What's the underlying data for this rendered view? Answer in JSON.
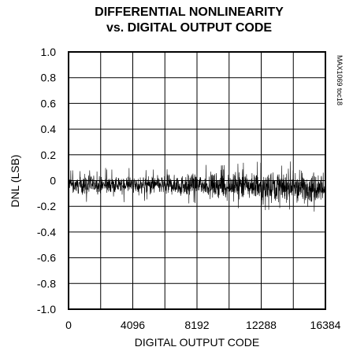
{
  "chart_data": {
    "type": "line",
    "title": "DIFFERENTIAL NONLINEARITY",
    "subtitle": "vs. DIGITAL OUTPUT CODE",
    "xlabel": "DIGITAL OUTPUT CODE",
    "ylabel": "DNL (LSB)",
    "xlim": [
      0,
      16384
    ],
    "ylim": [
      -1.0,
      1.0
    ],
    "x_ticks": [
      "0",
      "4096",
      "8192",
      "12288",
      "16384"
    ],
    "x_tick_values": [
      0,
      4096,
      8192,
      12288,
      16384
    ],
    "y_ticks": [
      "1.0",
      "0.8",
      "0.6",
      "0.4",
      "0.2",
      "0",
      "-0.2",
      "-0.4",
      "-0.6",
      "-0.8",
      "-1.0"
    ],
    "y_tick_values": [
      1.0,
      0.8,
      0.6,
      0.4,
      0.2,
      0.0,
      -0.2,
      -0.4,
      -0.6,
      -0.8,
      -1.0
    ],
    "grid": true,
    "figure_code": "MAX1069 toc18",
    "series": [
      {
        "values_summary": {
          "x": [
            0,
            2048,
            4096,
            6144,
            8192,
            10240,
            12288,
            14336,
            16383
          ],
          "upper_envelope": [
            0.04,
            0.04,
            0.04,
            0.05,
            0.06,
            0.07,
            0.09,
            0.09,
            0.09
          ],
          "lower_envelope": [
            -0.11,
            -0.11,
            -0.11,
            -0.12,
            -0.13,
            -0.15,
            -0.17,
            -0.18,
            -0.19
          ]
        }
      }
    ]
  }
}
